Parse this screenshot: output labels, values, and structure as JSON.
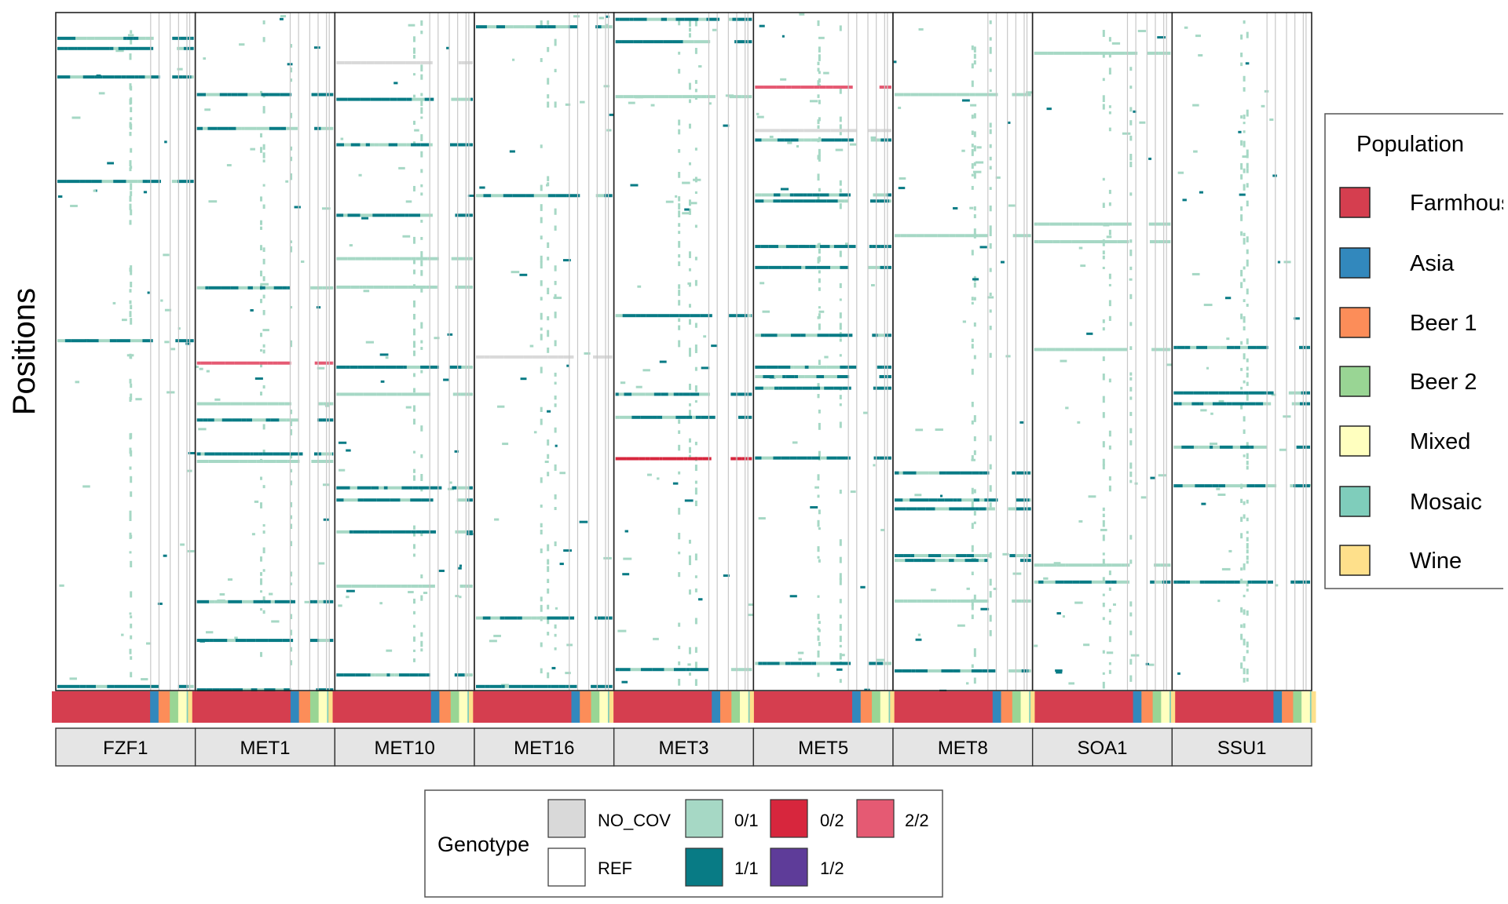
{
  "chart_data": {
    "type": "heatmap",
    "title": "",
    "ylabel": "Positions",
    "xlabel": "",
    "facets": [
      "FZF1",
      "MET1",
      "MET10",
      "MET16",
      "MET3",
      "MET5",
      "MET8",
      "SOA1",
      "SSU1"
    ],
    "population_order": [
      "Farmhouse",
      "Asia",
      "Beer 1",
      "Beer 2",
      "Mixed",
      "Mosaic",
      "Wine"
    ],
    "population_share": [
      0.7,
      0.06,
      0.08,
      0.06,
      0.06,
      0.01,
      0.03
    ],
    "genotype_colors": {
      "NO_COV": "#d9d9d9",
      "REF": "#ffffff",
      "0/1": "#a6d8c5",
      "1/1": "#087b85",
      "0/2": "#d7263d",
      "1/2": "#5e3c99",
      "2/2": "#e55a73"
    },
    "bands": {
      "FZF1": [
        [
          0.038,
          "1/1"
        ],
        [
          0.053,
          "1/1"
        ],
        [
          0.095,
          "1/1"
        ],
        [
          0.249,
          "1/1"
        ],
        [
          0.484,
          "1/1"
        ],
        [
          0.994,
          "1/1"
        ]
      ],
      "MET1": [
        [
          0.121,
          "1/1"
        ],
        [
          0.171,
          "1/1"
        ],
        [
          0.406,
          "1/1"
        ],
        [
          0.517,
          "2/2"
        ],
        [
          0.577,
          "0/1"
        ],
        [
          0.601,
          "1/1"
        ],
        [
          0.651,
          "1/1"
        ],
        [
          0.662,
          "0/1"
        ],
        [
          0.869,
          "1/1"
        ],
        [
          0.926,
          "1/1"
        ],
        [
          0.999,
          "1/1"
        ]
      ],
      "MET10": [
        [
          0.074,
          "NO_COV"
        ],
        [
          0.128,
          "1/1"
        ],
        [
          0.195,
          "1/1"
        ],
        [
          0.299,
          "1/1"
        ],
        [
          0.363,
          "0/1"
        ],
        [
          0.405,
          "0/1"
        ],
        [
          0.523,
          "1/1"
        ],
        [
          0.563,
          "0/1"
        ],
        [
          0.701,
          "1/1"
        ],
        [
          0.719,
          "1/1"
        ],
        [
          0.766,
          "1/1"
        ],
        [
          0.846,
          "0/1"
        ],
        [
          0.977,
          "1/1"
        ]
      ],
      "MET16": [
        [
          0.021,
          "1/1"
        ],
        [
          0.27,
          "1/1"
        ],
        [
          0.508,
          "NO_COV"
        ],
        [
          0.893,
          "1/1"
        ],
        [
          0.994,
          "1/1"
        ]
      ],
      "MET3": [
        [
          0.01,
          "1/1"
        ],
        [
          0.043,
          "1/1"
        ],
        [
          0.124,
          "0/1"
        ],
        [
          0.447,
          "1/1"
        ],
        [
          0.563,
          "1/1"
        ],
        [
          0.597,
          "1/1"
        ],
        [
          0.658,
          "0/2"
        ],
        [
          0.969,
          "1/1"
        ]
      ],
      "MET5": [
        [
          0.11,
          "2/2"
        ],
        [
          0.174,
          "NO_COV"
        ],
        [
          0.188,
          "1/1"
        ],
        [
          0.269,
          "1/1"
        ],
        [
          0.278,
          "1/1"
        ],
        [
          0.345,
          "1/1"
        ],
        [
          0.376,
          "1/1"
        ],
        [
          0.476,
          "1/1"
        ],
        [
          0.523,
          "1/1"
        ],
        [
          0.537,
          "1/1"
        ],
        [
          0.554,
          "1/1"
        ],
        [
          0.657,
          "1/1"
        ],
        [
          0.96,
          "1/1"
        ]
      ],
      "MET8": [
        [
          0.121,
          "0/1"
        ],
        [
          0.329,
          "0/1"
        ],
        [
          0.679,
          "1/1"
        ],
        [
          0.719,
          "1/1"
        ],
        [
          0.732,
          "1/1"
        ],
        [
          0.801,
          "1/1"
        ],
        [
          0.808,
          "1/1"
        ],
        [
          0.868,
          "0/1"
        ],
        [
          0.971,
          "1/1"
        ]
      ],
      "SOA1": [
        [
          0.06,
          "0/1"
        ],
        [
          0.312,
          "0/1"
        ],
        [
          0.338,
          "0/1"
        ],
        [
          0.497,
          "0/1"
        ],
        [
          0.815,
          "0/1"
        ],
        [
          0.84,
          "1/1"
        ]
      ],
      "SSU1": [
        [
          0.494,
          "1/1"
        ],
        [
          0.561,
          "1/1"
        ],
        [
          0.577,
          "1/1"
        ],
        [
          0.641,
          "1/1"
        ],
        [
          0.698,
          "1/1"
        ],
        [
          0.84,
          "1/1"
        ]
      ]
    }
  },
  "axis": {
    "ylabel": "Positions"
  },
  "population_legend": {
    "title": "Population",
    "items": [
      {
        "label": "Farmhouse",
        "color": "#d53e4f"
      },
      {
        "label": "Asia",
        "color": "#3288bd"
      },
      {
        "label": "Beer 1",
        "color": "#fc8d59"
      },
      {
        "label": "Beer 2",
        "color": "#99d594"
      },
      {
        "label": "Mixed",
        "color": "#ffffbf"
      },
      {
        "label": "Mosaic",
        "color": "#7fcdbb"
      },
      {
        "label": "Wine",
        "color": "#fee08b"
      }
    ]
  },
  "genotype_legend": {
    "title": "Genotype",
    "items": [
      {
        "label": "NO_COV",
        "color": "#d9d9d9"
      },
      {
        "label": "REF",
        "color": "#ffffff"
      },
      {
        "label": "0/1",
        "color": "#a6d8c5"
      },
      {
        "label": "1/1",
        "color": "#087b85"
      },
      {
        "label": "0/2",
        "color": "#d7263d"
      },
      {
        "label": "1/2",
        "color": "#5e3c99"
      },
      {
        "label": "2/2",
        "color": "#e55a73"
      }
    ]
  }
}
